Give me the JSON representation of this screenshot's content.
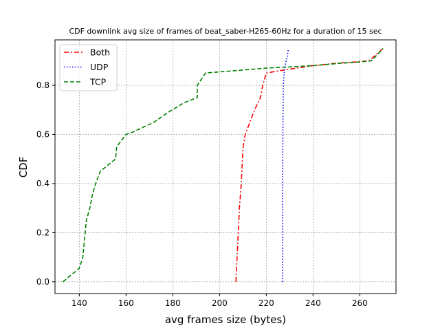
{
  "chart_data": {
    "type": "line",
    "title": "CDF downlink avg size of frames of beat_saber-H265-60Hz for a duration of 15 sec",
    "xlabel": "avg frames size (bytes)",
    "ylabel": "CDF",
    "xlim": [
      129.6,
      275.5
    ],
    "ylim": [
      -0.048,
      0.985
    ],
    "xticks": [
      140,
      160,
      180,
      200,
      220,
      240,
      260
    ],
    "xtick_labels": [
      "140",
      "160",
      "180",
      "200",
      "220",
      "240",
      "260"
    ],
    "yticks": [
      0.0,
      0.2,
      0.4,
      0.6,
      0.8
    ],
    "ytick_labels": [
      "0.0",
      "0.2",
      "0.4",
      "0.6",
      "0.8"
    ],
    "grid": true,
    "legend_position": "top-left",
    "series": [
      {
        "name": "Both",
        "color": "#ff0000",
        "dash": "dashdot",
        "points": [
          [
            207.0,
            0.0
          ],
          [
            207.5,
            0.1
          ],
          [
            208.0,
            0.2
          ],
          [
            208.5,
            0.3
          ],
          [
            209.3,
            0.4
          ],
          [
            209.8,
            0.5
          ],
          [
            210.1,
            0.55
          ],
          [
            211.0,
            0.6
          ],
          [
            213.0,
            0.65
          ],
          [
            215.0,
            0.7
          ],
          [
            217.5,
            0.75
          ],
          [
            218.5,
            0.8
          ],
          [
            220.0,
            0.85
          ],
          [
            226.0,
            0.86
          ],
          [
            240.0,
            0.88
          ],
          [
            250.0,
            0.89
          ],
          [
            258.0,
            0.895
          ],
          [
            264.0,
            0.9
          ],
          [
            270.0,
            0.95
          ]
        ]
      },
      {
        "name": "UDP",
        "color": "#0000ff",
        "dash": "dotted",
        "points": [
          [
            227.0,
            0.0
          ],
          [
            227.0,
            0.5
          ],
          [
            227.3,
            0.8
          ],
          [
            227.8,
            0.87
          ],
          [
            229.0,
            0.92
          ],
          [
            229.4,
            0.945
          ]
        ]
      },
      {
        "name": "TCP",
        "color": "#008000",
        "dash": "dashed",
        "points": [
          [
            133.0,
            0.0
          ],
          [
            140.0,
            0.055
          ],
          [
            141.5,
            0.1
          ],
          [
            142.5,
            0.2
          ],
          [
            143.0,
            0.25
          ],
          [
            144.5,
            0.3
          ],
          [
            145.5,
            0.35
          ],
          [
            147.0,
            0.4
          ],
          [
            149.0,
            0.45
          ],
          [
            155.5,
            0.5
          ],
          [
            156.0,
            0.55
          ],
          [
            160.0,
            0.6
          ],
          [
            163.0,
            0.61
          ],
          [
            172.0,
            0.65
          ],
          [
            178.0,
            0.69
          ],
          [
            185.0,
            0.73
          ],
          [
            190.5,
            0.75
          ],
          [
            190.5,
            0.8
          ],
          [
            194.0,
            0.85
          ],
          [
            220.0,
            0.87
          ],
          [
            240.0,
            0.88
          ],
          [
            252.0,
            0.89
          ],
          [
            260.0,
            0.895
          ],
          [
            265.0,
            0.9
          ],
          [
            270.0,
            0.95
          ]
        ]
      }
    ]
  }
}
